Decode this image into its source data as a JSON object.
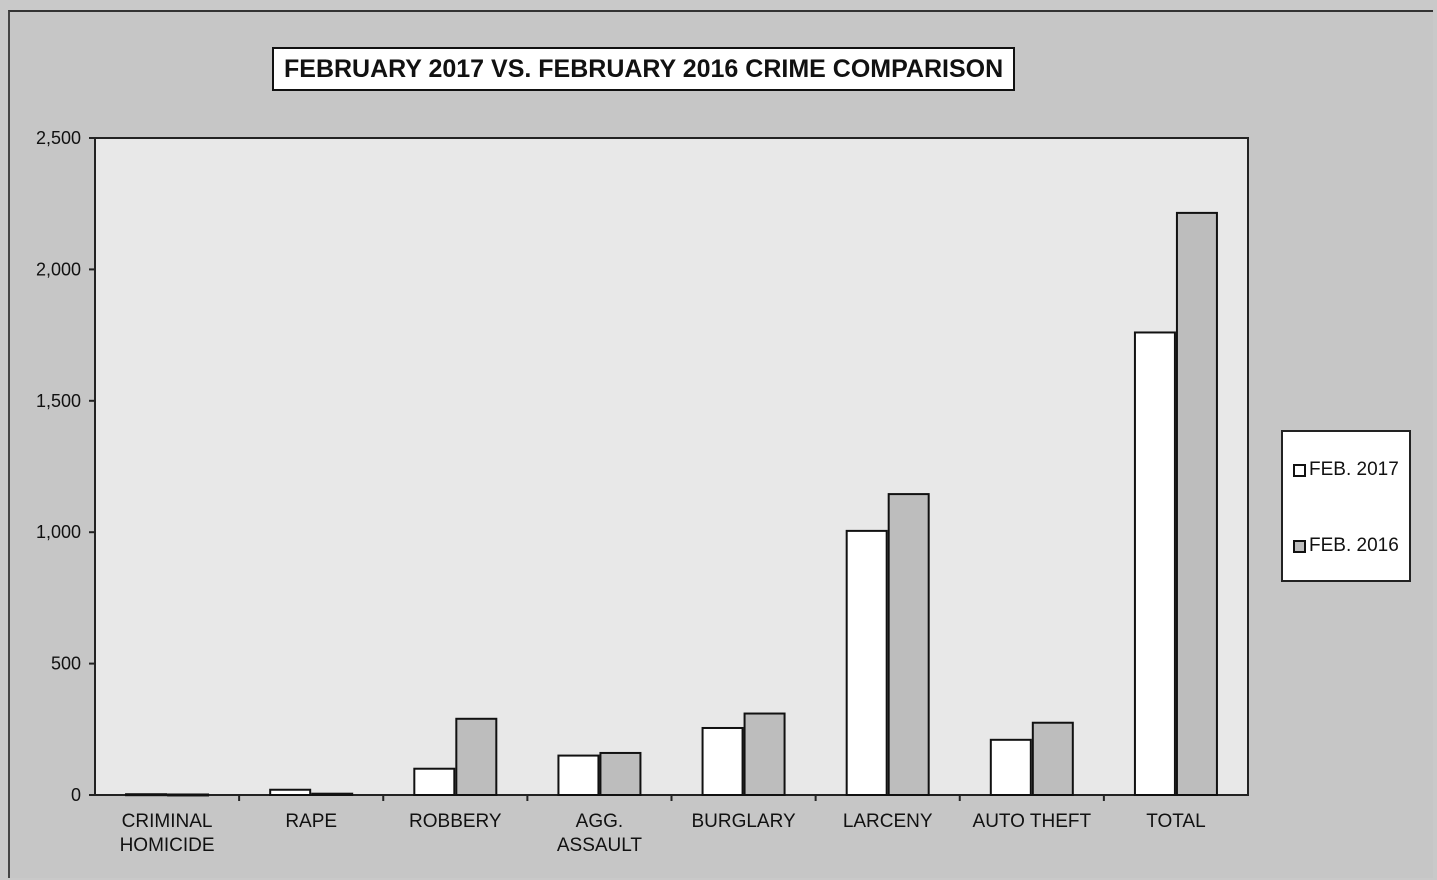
{
  "colors": {
    "background": "#c6c6c6",
    "plot_area": "#e8e8e8",
    "series_2017": "#ffffff",
    "series_2016": "#bdbdbd",
    "stroke": "#111111"
  },
  "chart_data": {
    "type": "bar",
    "title": "FEBRUARY 2017 VS. FEBRUARY 2016 CRIME COMPARISON",
    "xlabel": "",
    "ylabel": "",
    "ylim": [
      0,
      2500
    ],
    "yticks": [
      0,
      500,
      1000,
      1500,
      2000,
      2500
    ],
    "ytick_labels": [
      "0",
      "500",
      "1,000",
      "1,500",
      "2,000",
      "2,500"
    ],
    "categories": [
      [
        "CRIMINAL",
        "HOMICIDE"
      ],
      [
        "RAPE"
      ],
      [
        "ROBBERY"
      ],
      [
        "AGG.",
        "ASSAULT"
      ],
      [
        "BURGLARY"
      ],
      [
        "LARCENY"
      ],
      [
        "AUTO THEFT"
      ],
      [
        "TOTAL"
      ]
    ],
    "series": [
      {
        "name": "FEB. 2017",
        "values": [
          3,
          20,
          100,
          150,
          255,
          1005,
          210,
          1760
        ]
      },
      {
        "name": "FEB. 2016",
        "values": [
          2,
          5,
          290,
          160,
          310,
          1145,
          275,
          2215
        ]
      }
    ],
    "legend_position": "right",
    "grid": false
  }
}
